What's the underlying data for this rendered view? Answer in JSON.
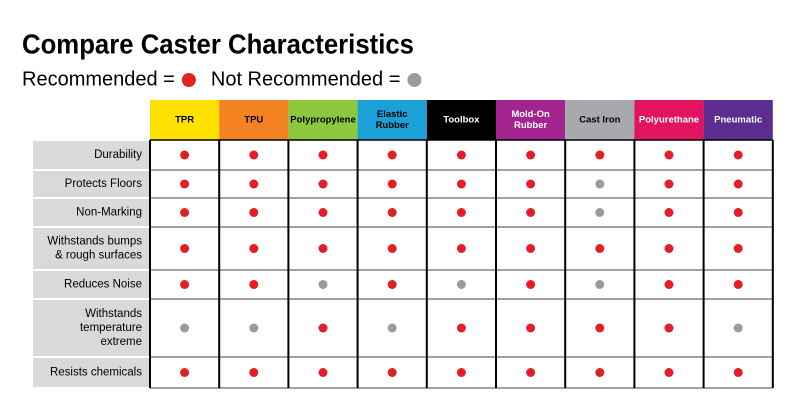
{
  "header": {
    "title": "Compare Caster Characteristics"
  },
  "legend": [
    {
      "label": "Recommended =",
      "color": "#e31e24"
    },
    {
      "label": "Not Recommended =",
      "color": "#9b9b9b"
    }
  ],
  "table": {
    "columns": [
      {
        "lines": [
          "TPR"
        ],
        "bg": "#ffe100",
        "fg": "#000000"
      },
      {
        "lines": [
          "TPU"
        ],
        "bg": "#f58220",
        "fg": "#000000"
      },
      {
        "lines": [
          "Polypropylene"
        ],
        "bg": "#8dc63f",
        "fg": "#000000"
      },
      {
        "lines": [
          "Elastic",
          "Rubber"
        ],
        "bg": "#1ba1d8",
        "fg": "#000000"
      },
      {
        "lines": [
          "Toolbox"
        ],
        "bg": "#000000",
        "fg": "#ffffff"
      },
      {
        "lines": [
          "Mold-On",
          "Rubber"
        ],
        "bg": "#a3238f",
        "fg": "#ffffff"
      },
      {
        "lines": [
          "Cast Iron"
        ],
        "bg": "#a7a9ac",
        "fg": "#000000"
      },
      {
        "lines": [
          "Polyurethane"
        ],
        "bg": "#e2135f",
        "fg": "#ffffff"
      },
      {
        "lines": [
          "Pneumatic"
        ],
        "bg": "#5b2d91",
        "fg": "#ffffff"
      }
    ],
    "rows": [
      {
        "lines": [
          "Durability"
        ],
        "recommended": [
          true,
          true,
          true,
          true,
          true,
          true,
          true,
          true,
          true
        ]
      },
      {
        "lines": [
          "Protects Floors"
        ],
        "recommended": [
          true,
          true,
          true,
          true,
          true,
          true,
          false,
          true,
          true
        ]
      },
      {
        "lines": [
          "Non-Marking"
        ],
        "recommended": [
          true,
          true,
          true,
          true,
          true,
          true,
          false,
          true,
          true
        ]
      },
      {
        "lines": [
          "Withstands bumps",
          "& rough surfaces"
        ],
        "recommended": [
          true,
          true,
          true,
          true,
          true,
          true,
          true,
          true,
          true
        ]
      },
      {
        "lines": [
          "Reduces Noise"
        ],
        "recommended": [
          true,
          true,
          false,
          true,
          false,
          true,
          false,
          true,
          true
        ]
      },
      {
        "lines": [
          "Withstands",
          "temperature",
          "extreme"
        ],
        "recommended": [
          false,
          false,
          true,
          false,
          true,
          true,
          true,
          true,
          false
        ]
      },
      {
        "lines": [
          "Resists chemicals"
        ],
        "recommended": [
          true,
          true,
          true,
          true,
          true,
          true,
          true,
          true,
          true
        ]
      }
    ]
  }
}
